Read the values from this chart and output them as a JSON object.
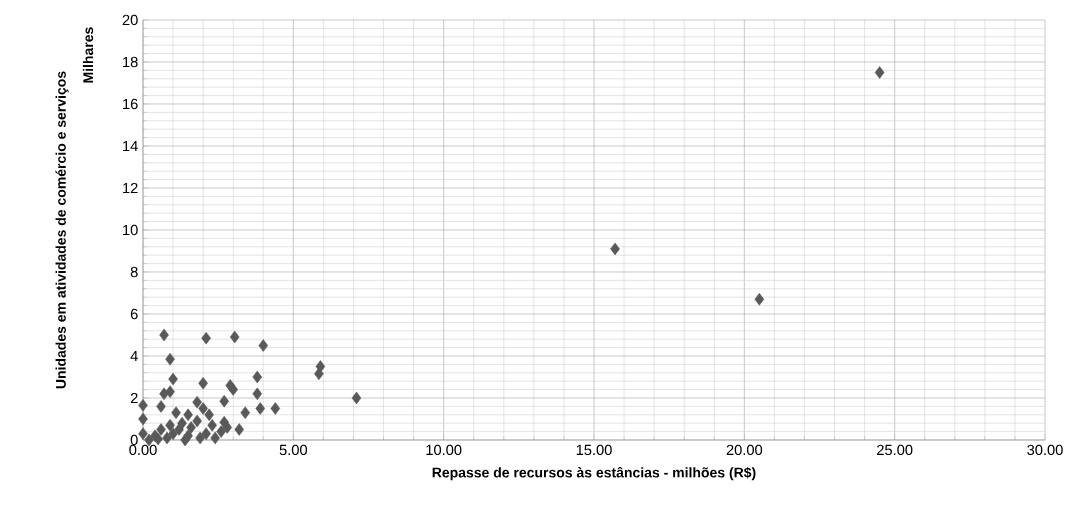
{
  "chart_data": {
    "type": "scatter",
    "xlabel": "Repasse de recursos às estâncias - milhões (R$)",
    "ylabel": "Unidades em atividades de comércio e serviços",
    "annotations": [
      "Milhares"
    ],
    "series": [
      {
        "color": "#595959",
        "x": [
          24.5,
          15.7,
          20.5,
          7.1,
          5.9,
          5.85,
          4.4,
          4.0,
          3.05,
          2.1,
          0.7,
          0.9,
          3.8,
          3.8,
          3.9,
          3.0,
          2.9,
          2.0,
          1.0,
          0.9,
          0.7,
          2.7,
          1.8,
          3.4,
          3.2,
          2.6,
          2.7,
          0.0,
          0.0,
          0.0,
          0.6,
          1.1,
          1.5,
          2.0,
          2.2,
          1.3,
          0.4,
          0.2,
          0.5,
          0.8,
          1.0,
          1.2,
          1.5,
          1.6,
          1.8,
          2.1,
          2.3,
          2.4,
          1.4,
          0.9,
          0.6,
          1.9,
          2.8
        ],
        "values": [
          17.5,
          9.1,
          6.7,
          2.0,
          3.5,
          3.15,
          1.5,
          4.5,
          4.9,
          4.85,
          5.0,
          3.85,
          3.0,
          2.2,
          1.5,
          2.4,
          2.6,
          2.7,
          2.9,
          2.3,
          2.2,
          1.85,
          1.8,
          1.3,
          0.5,
          0.4,
          0.85,
          1.65,
          1.0,
          0.3,
          1.6,
          1.3,
          1.2,
          1.5,
          1.2,
          0.8,
          0.2,
          0.0,
          0.05,
          0.1,
          0.3,
          0.5,
          0.2,
          0.6,
          0.9,
          0.3,
          0.7,
          0.1,
          0.0,
          0.7,
          0.5,
          0.1,
          0.6
        ]
      }
    ],
    "marker": "diamond",
    "grid": true,
    "xlim": [
      0,
      30
    ],
    "ylim": [
      0,
      20
    ],
    "xticks": [
      {
        "value": 0,
        "label": "0.00"
      },
      {
        "value": 5,
        "label": "5.00"
      },
      {
        "value": 10,
        "label": "10.00"
      },
      {
        "value": 15,
        "label": "15.00"
      },
      {
        "value": 20,
        "label": "20.00"
      },
      {
        "value": 25,
        "label": "25.00"
      },
      {
        "value": 30,
        "label": "30.00"
      }
    ],
    "yticks": [
      0,
      2,
      4,
      6,
      8,
      10,
      12,
      14,
      16,
      18,
      20
    ]
  }
}
